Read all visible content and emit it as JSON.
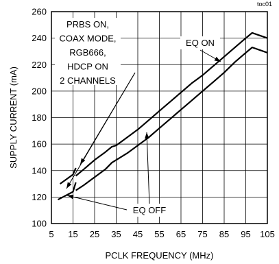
{
  "chart_data": {
    "type": "line",
    "corner_label": "toc01",
    "xlabel": "PCLK FREQUENCY (MHz)",
    "ylabel": "SUPPLY CURRENT (mA)",
    "xlim": [
      5,
      105
    ],
    "ylim": [
      100,
      260
    ],
    "xticks": [
      5,
      15,
      25,
      35,
      45,
      55,
      65,
      75,
      85,
      95,
      105
    ],
    "yticks": [
      100,
      120,
      140,
      160,
      180,
      200,
      220,
      240,
      260
    ],
    "grid": true,
    "series": [
      {
        "name": "EQ ON",
        "segments": [
          [
            [
              9,
              130
            ],
            [
              15,
              137
            ],
            [
              16.3,
              142
            ]
          ],
          [
            [
              16.3,
              136
            ],
            [
              20,
              141
            ],
            [
              25,
              148
            ],
            [
              30,
              154
            ],
            [
              33,
              158
            ],
            [
              35,
              159
            ],
            [
              40,
              165
            ],
            [
              45,
              171
            ],
            [
              50,
              178
            ],
            [
              55,
              185
            ],
            [
              60,
              192
            ],
            [
              65,
              199
            ],
            [
              70,
              206
            ],
            [
              75,
              212
            ],
            [
              80,
              219
            ],
            [
              85,
              226
            ],
            [
              90,
              233
            ],
            [
              95,
              240
            ],
            [
              98,
              244
            ],
            [
              105,
              240
            ]
          ]
        ]
      },
      {
        "name": "EQ OFF",
        "segments": [
          [
            [
              8,
              118
            ],
            [
              15,
              124
            ],
            [
              16.3,
              131
            ]
          ],
          [
            [
              16.3,
              125
            ],
            [
              20,
              129
            ],
            [
              25,
              135
            ],
            [
              30,
              141
            ],
            [
              33,
              146
            ],
            [
              35,
              148
            ],
            [
              40,
              153
            ],
            [
              45,
              159
            ],
            [
              50,
              165
            ],
            [
              55,
              172
            ],
            [
              60,
              179
            ],
            [
              65,
              186
            ],
            [
              70,
              193
            ],
            [
              75,
              200
            ],
            [
              80,
              207
            ],
            [
              85,
              214
            ],
            [
              90,
              222
            ],
            [
              95,
              229
            ],
            [
              98,
              233
            ],
            [
              105,
              229
            ]
          ]
        ]
      }
    ],
    "annotations": [
      {
        "id": "conditions",
        "lines": [
          "PRBS ON,",
          "COAX MODE,",
          "RGB666,",
          "HDCP ON",
          "2 CHANNELS"
        ]
      },
      {
        "id": "eq_on",
        "text": "EQ ON"
      },
      {
        "id": "eq_off",
        "text": "EQ OFF"
      }
    ]
  }
}
